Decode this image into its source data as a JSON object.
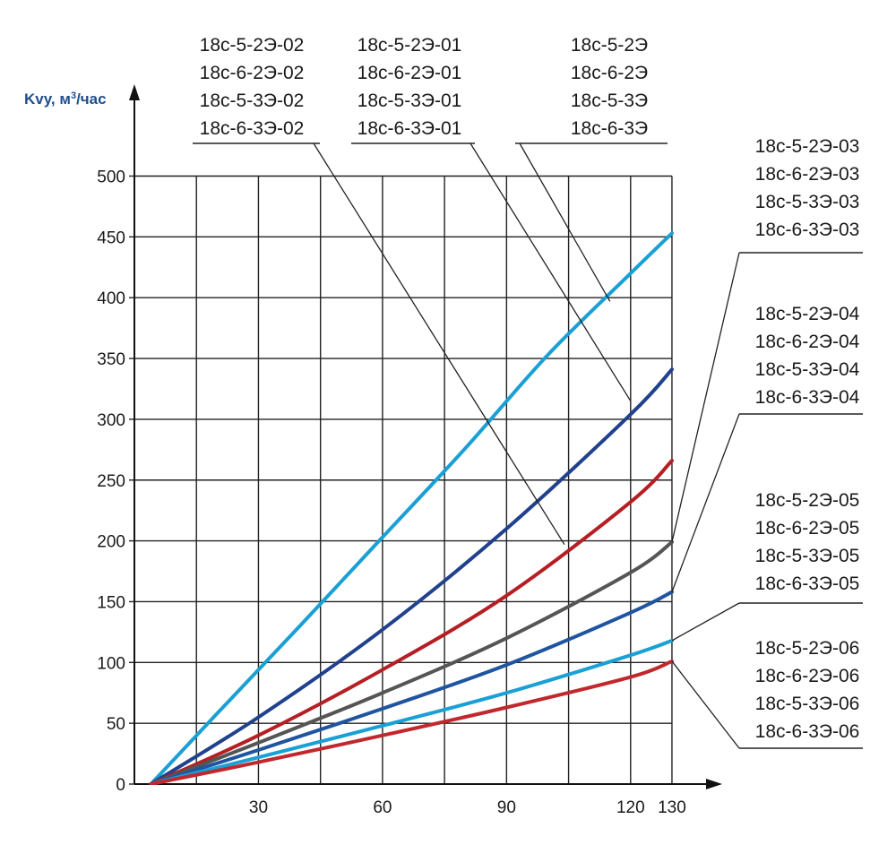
{
  "chart_data": {
    "type": "line",
    "ylabel": "Kvy, м³/час",
    "y_ticks": [
      0,
      50,
      100,
      150,
      200,
      250,
      300,
      350,
      400,
      450,
      500
    ],
    "x_ticks": [
      30,
      60,
      90,
      120,
      130
    ],
    "xlim": [
      0,
      130
    ],
    "ylim": [
      0,
      500
    ],
    "grid": true,
    "series": [
      {
        "color": "#1aa0d4",
        "x": [
          4,
          20,
          40,
          60,
          80,
          100,
          120,
          130
        ],
        "y": [
          0,
          58,
          130,
          203,
          276,
          353,
          420,
          453
        ]
      },
      {
        "color": "#20418c",
        "x": [
          4,
          30,
          60,
          90,
          120,
          130
        ],
        "y": [
          0,
          55,
          127,
          210,
          304,
          341
        ]
      },
      {
        "color": "#b51f24",
        "x": [
          4,
          30,
          60,
          90,
          120,
          130
        ],
        "y": [
          0,
          40,
          94,
          155,
          232,
          266
        ]
      },
      {
        "color": "#555555",
        "x": [
          4,
          30,
          60,
          90,
          120,
          130
        ],
        "y": [
          0,
          34,
          75,
          120,
          174,
          199
        ]
      },
      {
        "color": "#1f55a0",
        "x": [
          4,
          30,
          60,
          90,
          120,
          130
        ],
        "y": [
          0,
          28,
          62,
          98,
          141,
          158
        ]
      },
      {
        "color": "#1aa0d4",
        "x": [
          4,
          30,
          60,
          90,
          120,
          130
        ],
        "y": [
          0,
          22,
          48,
          75,
          106,
          118
        ]
      },
      {
        "color": "#c0282d",
        "x": [
          4,
          30,
          60,
          90,
          120,
          130
        ],
        "y": [
          0,
          18,
          40,
          63,
          88,
          101
        ]
      }
    ],
    "annotations": [
      {
        "lines": [
          "18с-5-2Э-02",
          "18с-6-2Э-02",
          "18с-5-3Э-02",
          "18с-6-3Э-02"
        ],
        "x": 104,
        "y": 197
      },
      {
        "lines": [
          "18с-5-2Э-01",
          "18с-6-2Э-01",
          "18с-5-3Э-01",
          "18с-6-3Э-01"
        ],
        "x": 120,
        "y": 315
      },
      {
        "lines": [
          "18с-5-2Э",
          "18с-6-2Э",
          "18с-5-3Э",
          "18с-6-3Э"
        ],
        "x": 115,
        "y": 397
      },
      {
        "lines": [
          "18с-5-2Э-03",
          "18с-6-2Э-03",
          "18с-5-3Э-03",
          "18с-6-3Э-03"
        ],
        "x": 130,
        "y": 199
      },
      {
        "lines": [
          "18с-5-2Э-04",
          "18с-6-2Э-04",
          "18с-5-3Э-04",
          "18с-6-3Э-04"
        ],
        "x": 130,
        "y": 158
      },
      {
        "lines": [
          "18с-5-2Э-05",
          "18с-6-2Э-05",
          "18с-5-3Э-05",
          "18с-6-3Э-05"
        ],
        "x": 130,
        "y": 118
      },
      {
        "lines": [
          "18с-5-2Э-06",
          "18с-6-2Э-06",
          "18с-5-3Э-06",
          "18с-6-3Э-06"
        ],
        "x": 130,
        "y": 101
      }
    ]
  }
}
